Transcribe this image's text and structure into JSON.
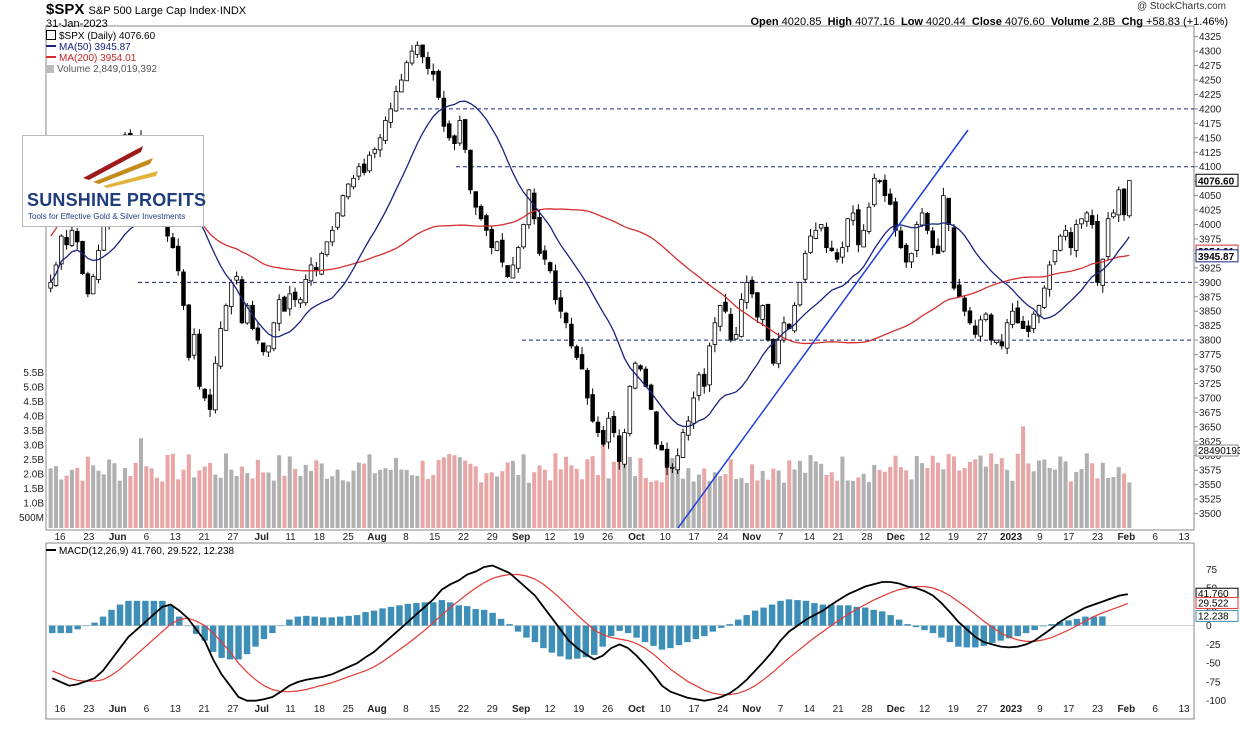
{
  "header": {
    "symbol": "$SPX",
    "name": "S&P 500 Large Cap Index",
    "exchange": "INDX",
    "date": "31-Jan-2023",
    "copyright": "@ StockCharts.com",
    "open_label": "Open",
    "open": "4020.85",
    "high_label": "High",
    "high": "4077.16",
    "low_label": "Low",
    "low": "4020.44",
    "close_label": "Close",
    "close": "4076.60",
    "volume_label": "Volume",
    "volume": "2.8B",
    "chg_label": "Chg",
    "chg": "+58.83 (+1.46%)"
  },
  "legend": {
    "price": "$SPX (Daily) 4076.60",
    "ma50": "MA(50) 3945.87",
    "ma200": "MA(200) 3954.01",
    "volume": "Volume 2,849,019,392",
    "macd": "MACD(12,26,9) 41.760, 29.522, 12.238"
  },
  "logo": {
    "title": "SUNSHINE PROFITS",
    "tagline": "Tools for Effective Gold & Silver Investments"
  },
  "colors": {
    "up": "#ffffff",
    "down": "#000000",
    "ma50": "#1a237e",
    "ma200": "#d32f2f",
    "vol_up": "#b0b0b0",
    "vol_down": "#e8a6a6",
    "macd": "#000000",
    "signal": "#e53935",
    "histogram": "#3e8fb8",
    "trendline": "#1e40d8",
    "hline": "#1a237e"
  },
  "chart_data": [
    {
      "type": "candlestick",
      "title": "$SPX (Daily)",
      "ylim": [
        3475,
        4340
      ],
      "y_ticks": [
        3500,
        3525,
        3550,
        3575,
        3600,
        3625,
        3650,
        3675,
        3700,
        3725,
        3750,
        3775,
        3800,
        3825,
        3850,
        3875,
        3900,
        3925,
        3950,
        3975,
        4000,
        4025,
        4050,
        4075,
        4100,
        4125,
        4150,
        4175,
        4200,
        4225,
        4250,
        4275,
        4300,
        4325
      ],
      "x_ticks": [
        "16",
        "23",
        "Jun",
        "6",
        "13",
        "21",
        "27",
        "Jul",
        "11",
        "18",
        "25",
        "Aug",
        "8",
        "15",
        "22",
        "29",
        "Sep",
        "12",
        "19",
        "26",
        "Oct",
        "10",
        "17",
        "24",
        "Nov",
        "7",
        "14",
        "21",
        "28",
        "Dec",
        "12",
        "19",
        "27",
        "2023",
        "9",
        "17",
        "23",
        "Feb",
        "6",
        "13"
      ],
      "markers": {
        "last_price": "4076.60",
        "ma200_value": "3954.01",
        "ma50_value": "3945.87"
      },
      "horizontal_levels": [
        4200,
        4100,
        3900,
        3800
      ],
      "closes": [
        3900,
        3930,
        3980,
        3965,
        3990,
        3970,
        3915,
        3880,
        3910,
        3955,
        3998,
        4025,
        4060,
        4115,
        4155,
        4130,
        4105,
        4150,
        4140,
        4110,
        4070,
        4020,
        3980,
        3960,
        3920,
        3860,
        3770,
        3810,
        3720,
        3700,
        3680,
        3760,
        3820,
        3860,
        3900,
        3910,
        3830,
        3860,
        3820,
        3800,
        3780,
        3790,
        3830,
        3870,
        3850,
        3880,
        3870,
        3870,
        3905,
        3930,
        3920,
        3950,
        3970,
        3990,
        4020,
        4050,
        4070,
        4080,
        4100,
        4090,
        4120,
        4130,
        4150,
        4180,
        4200,
        4230,
        4250,
        4280,
        4300,
        4310,
        4290,
        4270,
        4260,
        4220,
        4170,
        4150,
        4140,
        4180,
        4130,
        4060,
        4030,
        4010,
        3990,
        3960,
        3970,
        3935,
        3910,
        3930,
        3960,
        4000,
        4060,
        4010,
        3950,
        3940,
        3920,
        3870,
        3850,
        3830,
        3790,
        3770,
        3750,
        3700,
        3660,
        3640,
        3620,
        3665,
        3640,
        3590,
        3640,
        3720,
        3760,
        3750,
        3720,
        3680,
        3620,
        3610,
        3580,
        3580,
        3600,
        3640,
        3660,
        3700,
        3740,
        3720,
        3790,
        3830,
        3860,
        3850,
        3800,
        3810,
        3870,
        3900,
        3880,
        3840,
        3860,
        3800,
        3760,
        3800,
        3830,
        3820,
        3860,
        3900,
        3950,
        3980,
        3990,
        4000,
        3960,
        3955,
        3940,
        3960,
        4010,
        4020,
        3965,
        3990,
        4030,
        4080,
        4075,
        4050,
        4035,
        3990,
        3960,
        3935,
        3950,
        4000,
        4020,
        3990,
        3960,
        3950,
        4050,
        4000,
        3890,
        3875,
        3850,
        3830,
        3810,
        3835,
        3845,
        3800,
        3800,
        3790,
        3830,
        3850,
        3830,
        3820,
        3815,
        3845,
        3860,
        3890,
        3930,
        3955,
        3980,
        3990,
        3960,
        4000,
        4010,
        4020,
        4000,
        3900,
        3940,
        4010,
        4020,
        4060,
        4017,
        4076
      ]
    },
    {
      "type": "bar",
      "title": "Volume",
      "y_ticks": [
        "500M",
        "1.0B",
        "1.5B",
        "2.0B",
        "2.5B",
        "3.0B",
        "3.5B",
        "4.0B",
        "4.5B",
        "5.0B",
        "5.5B"
      ],
      "last_value": "2849019392"
    },
    {
      "type": "line",
      "title": "MACD(12,26,9)",
      "ylim": [
        -115,
        90
      ],
      "y_ticks": [
        75,
        50,
        25,
        0,
        -25,
        -50,
        -75,
        -100
      ],
      "series": [
        {
          "name": "MACD",
          "values": [
            -70,
            -75,
            -80,
            -78,
            -74,
            -70,
            -60,
            -45,
            -30,
            -15,
            -5,
            5,
            15,
            25,
            28,
            20,
            10,
            -5,
            -20,
            -45,
            -65,
            -80,
            -95,
            -100,
            -100,
            -98,
            -95,
            -88,
            -80,
            -75,
            -72,
            -70,
            -68,
            -65,
            -60,
            -55,
            -50,
            -42,
            -35,
            -25,
            -15,
            -5,
            5,
            15,
            25,
            35,
            48,
            55,
            60,
            68,
            72,
            78,
            80,
            75,
            70,
            60,
            50,
            40,
            25,
            10,
            -5,
            -20,
            -30,
            -38,
            -45,
            -40,
            -30,
            -25,
            -30,
            -40,
            -52,
            -65,
            -80,
            -88,
            -92,
            -96,
            -98,
            -100,
            -98,
            -95,
            -90,
            -82,
            -72,
            -60,
            -48,
            -35,
            -20,
            -8,
            0,
            8,
            14,
            20,
            28,
            35,
            42,
            47,
            52,
            55,
            58,
            58,
            56,
            52,
            50,
            46,
            40,
            30,
            18,
            5,
            -5,
            -15,
            -22,
            -25,
            -28,
            -29,
            -28,
            -25,
            -20,
            -12,
            -4,
            5,
            12,
            18,
            24,
            28,
            32,
            36,
            40,
            41.76
          ]
        },
        {
          "name": "Signal",
          "values": [
            -60,
            -65,
            -70,
            -73,
            -74,
            -74,
            -72,
            -66,
            -58,
            -48,
            -38,
            -28,
            -18,
            -8,
            2,
            8,
            10,
            6,
            0,
            -10,
            -22,
            -35,
            -50,
            -62,
            -72,
            -80,
            -85,
            -88,
            -88,
            -87,
            -85,
            -82,
            -79,
            -76,
            -72,
            -68,
            -64,
            -60,
            -55,
            -48,
            -40,
            -32,
            -24,
            -15,
            -6,
            4,
            14,
            24,
            33,
            42,
            50,
            57,
            63,
            66,
            68,
            68,
            66,
            62,
            55,
            46,
            36,
            25,
            14,
            4,
            -6,
            -12,
            -16,
            -18,
            -20,
            -24,
            -30,
            -38,
            -48,
            -58,
            -66,
            -74,
            -80,
            -86,
            -90,
            -92,
            -92,
            -90,
            -86,
            -80,
            -72,
            -63,
            -53,
            -43,
            -34,
            -25,
            -16,
            -8,
            0,
            8,
            15,
            22,
            28,
            34,
            39,
            44,
            48,
            50,
            52,
            52,
            50,
            46,
            40,
            32,
            24,
            15,
            6,
            -2,
            -10,
            -15,
            -19,
            -21,
            -21,
            -19,
            -16,
            -11,
            -6,
            0,
            6,
            12,
            17,
            21,
            25,
            29.522
          ]
        },
        {
          "name": "Histogram",
          "values": [
            -10,
            -10,
            -10,
            -5,
            0,
            4,
            12,
            21,
            28,
            33,
            33,
            33,
            33,
            33,
            26,
            12,
            0,
            -11,
            -20,
            -35,
            -43,
            -45,
            -45,
            -38,
            -28,
            -18,
            -10,
            0,
            8,
            12,
            13,
            12,
            11,
            11,
            12,
            13,
            14,
            18,
            20,
            23,
            25,
            27,
            29,
            30,
            31,
            31,
            34,
            31,
            27,
            26,
            22,
            21,
            17,
            9,
            2,
            -8,
            -16,
            -22,
            -30,
            -36,
            -41,
            -45,
            -44,
            -42,
            -39,
            -28,
            -14,
            -7,
            -10,
            -16,
            -22,
            -27,
            -32,
            -30,
            -26,
            -22,
            -18,
            -14,
            -8,
            -3,
            2,
            8,
            14,
            20,
            24,
            28,
            33,
            35,
            34,
            33,
            30,
            28,
            28,
            27,
            27,
            25,
            24,
            21,
            19,
            14,
            8,
            2,
            -2,
            -6,
            -10,
            -16,
            -22,
            -28,
            -29,
            -29,
            -27,
            -23,
            -20,
            -17,
            -14,
            -10,
            -6,
            -1,
            2,
            5,
            7,
            9,
            12,
            12,
            12.238
          ]
        }
      ]
    }
  ]
}
